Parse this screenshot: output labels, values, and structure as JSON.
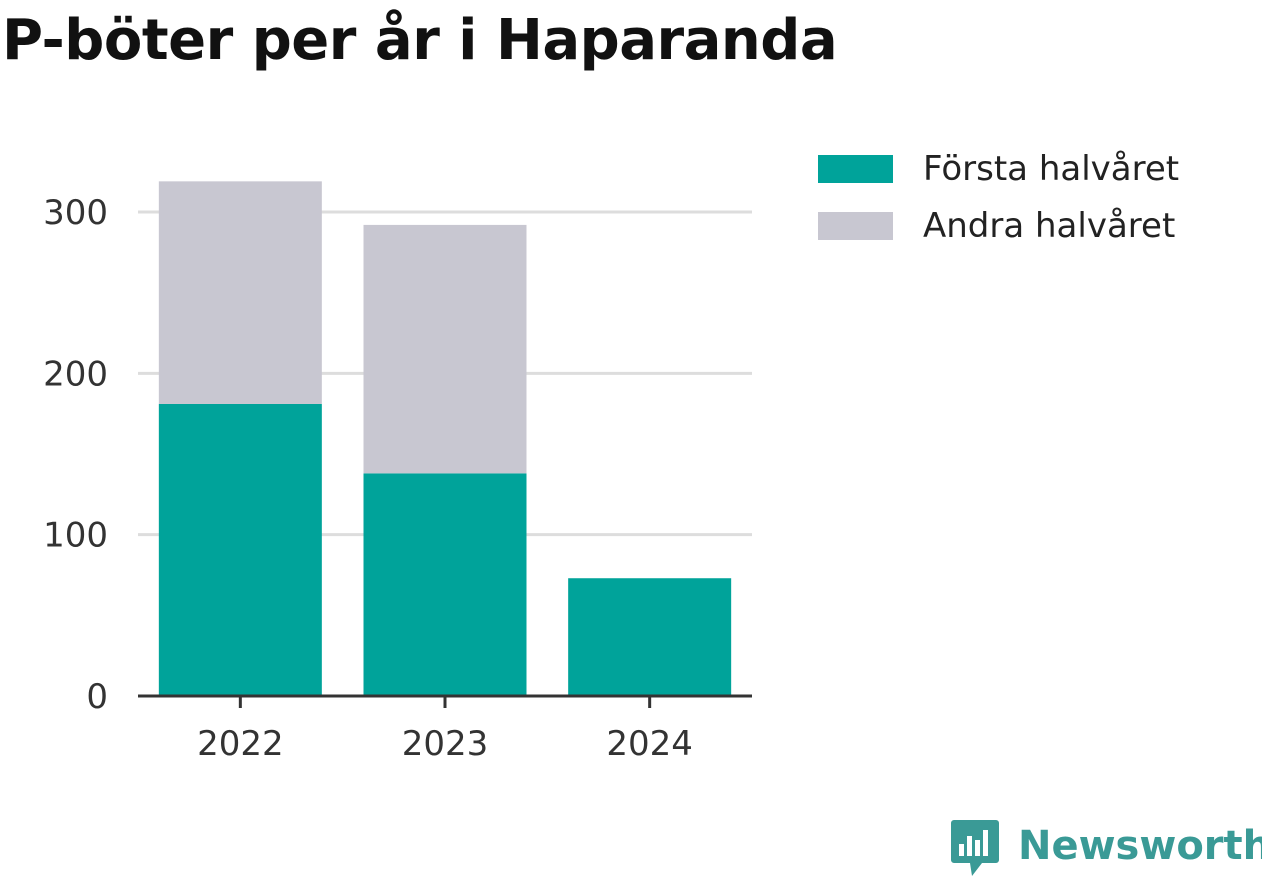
{
  "chart_data": {
    "type": "bar",
    "stacked": true,
    "title": "P-böter per år i Haparanda",
    "xlabel": "",
    "ylabel": "",
    "categories": [
      "2022",
      "2023",
      "2024"
    ],
    "series": [
      {
        "name": "Första halvåret",
        "values": [
          181,
          138,
          73
        ],
        "color": "#00A39A"
      },
      {
        "name": "Andra halvåret",
        "values": [
          138,
          154,
          0
        ],
        "color": "#C8C7D1"
      }
    ],
    "ylim": [
      0,
      320
    ],
    "yticks": [
      0,
      100,
      200,
      300
    ],
    "grid": true,
    "legend_position": "right-top"
  },
  "brand": {
    "name": "Newsworthy",
    "color": "#3A9A96",
    "icon": "newsworthy-chart-bubble-icon"
  }
}
